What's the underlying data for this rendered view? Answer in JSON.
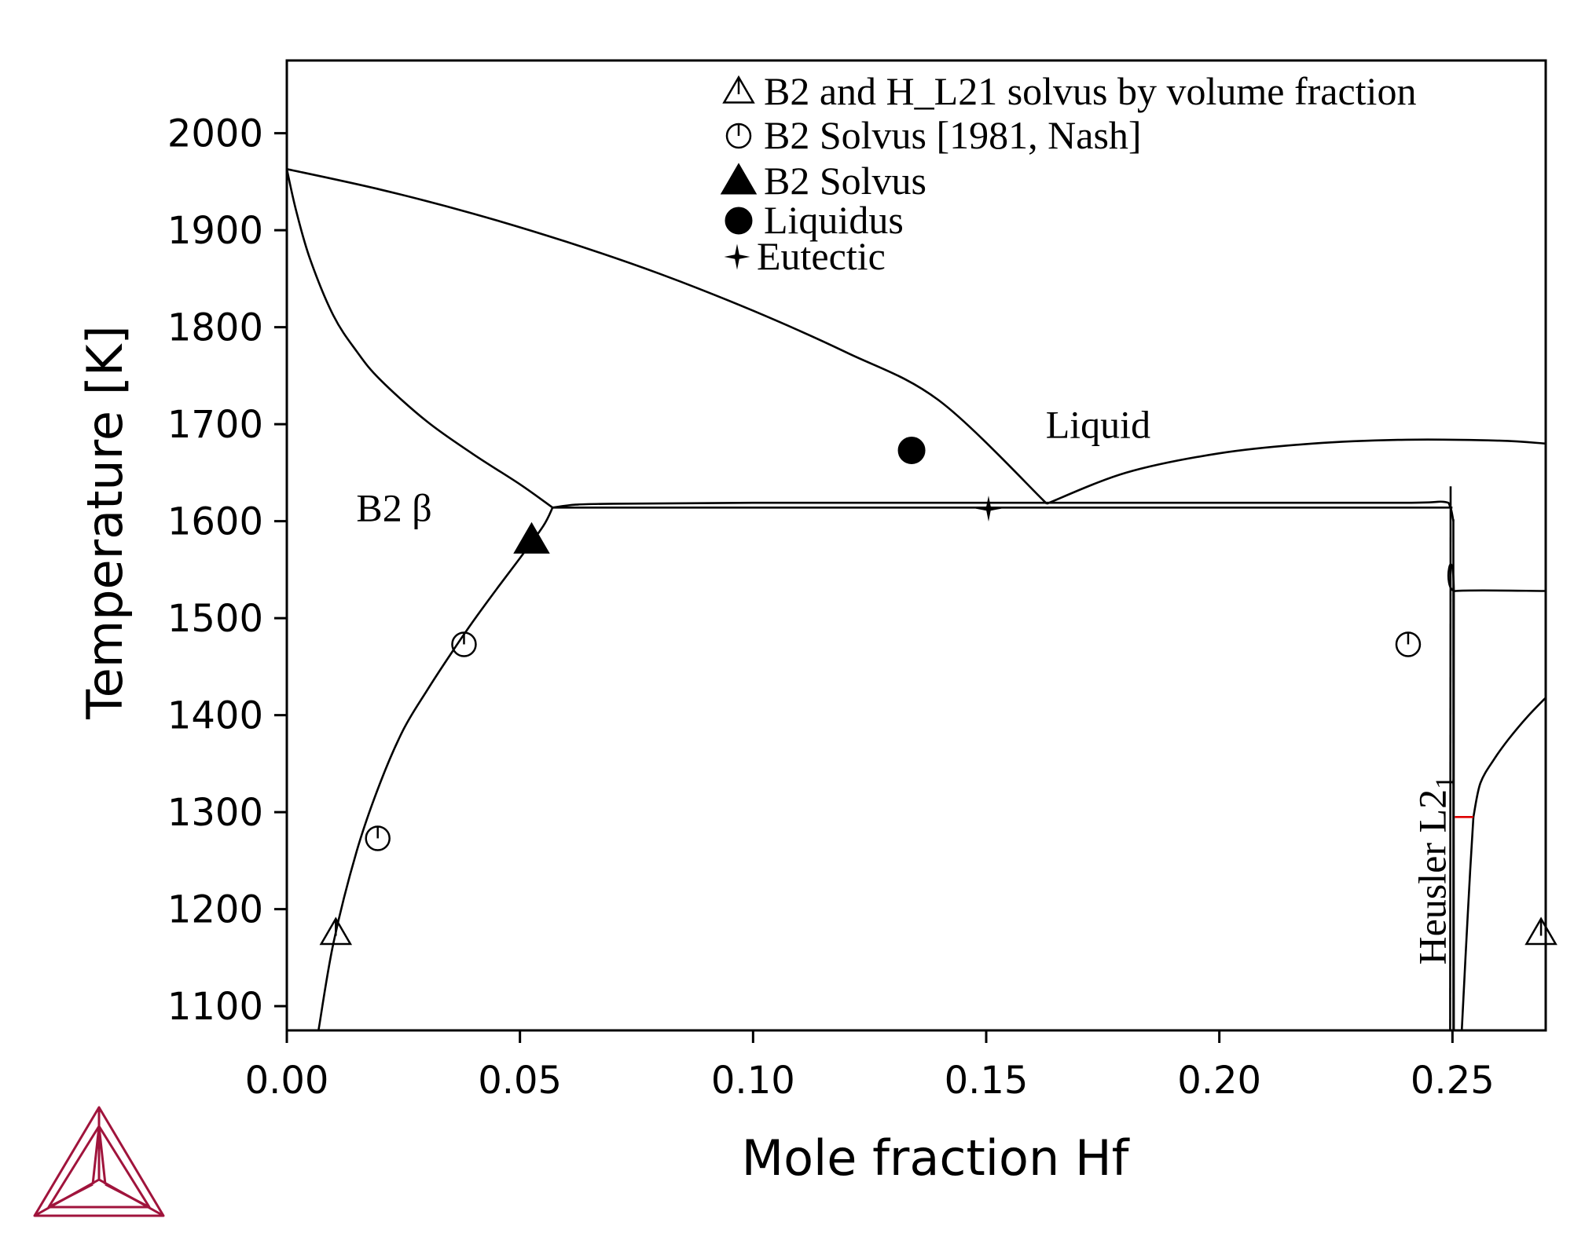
{
  "chart_data": {
    "type": "line",
    "xlabel": "Mole fraction Hf",
    "ylabel": "Temperature [K]",
    "xlim": [
      0,
      0.27
    ],
    "ylim": [
      1075,
      2075
    ],
    "x_ticks": [
      "0.00",
      "0.05",
      "0.10",
      "0.15",
      "0.20",
      "0.25"
    ],
    "x_tick_values": [
      0,
      0.05,
      0.1,
      0.15,
      0.2,
      0.25
    ],
    "y_ticks": [
      "1100",
      "1200",
      "1300",
      "1400",
      "1500",
      "1600",
      "1700",
      "1800",
      "1900",
      "2000"
    ],
    "y_tick_values": [
      1100,
      1200,
      1300,
      1400,
      1500,
      1600,
      1700,
      1800,
      1900,
      2000
    ],
    "grid": false,
    "legend_position": "top-right",
    "legend": [
      {
        "marker": "open-triangle",
        "label": "B2 and H_L21 solvus by volume fraction"
      },
      {
        "marker": "open-circle",
        "label": "B2 Solvus [1981, Nash]"
      },
      {
        "marker": "filled-triangle",
        "label": "B2 Solvus"
      },
      {
        "marker": "filled-circle",
        "label": "Liquidus"
      },
      {
        "marker": "star",
        "label": "Eutectic"
      }
    ],
    "region_labels": [
      {
        "text": "Liquid",
        "x": 0.174,
        "y": 1686
      },
      {
        "text": "B2 β",
        "x": 0.023,
        "y": 1600
      },
      {
        "text": "Heusler L2",
        "subscript": "1",
        "x": 0.2485,
        "y": 1240,
        "rotate": -90
      }
    ],
    "phase_boundaries": [
      {
        "name": "liquidus-left",
        "points": [
          [
            0,
            1963
          ],
          [
            0.02,
            1942
          ],
          [
            0.04,
            1917
          ],
          [
            0.06,
            1888
          ],
          [
            0.08,
            1855
          ],
          [
            0.1,
            1817
          ],
          [
            0.12,
            1774
          ],
          [
            0.14,
            1724
          ],
          [
            0.163,
            1618
          ]
        ]
      },
      {
        "name": "liquidus-right",
        "points": [
          [
            0.163,
            1618
          ],
          [
            0.18,
            1650
          ],
          [
            0.2,
            1670
          ],
          [
            0.22,
            1680
          ],
          [
            0.24,
            1684
          ],
          [
            0.26,
            1683
          ],
          [
            0.27,
            1680
          ]
        ]
      },
      {
        "name": "solidus-b2",
        "points": [
          [
            0,
            1963
          ],
          [
            0.002,
            1920
          ],
          [
            0.005,
            1870
          ],
          [
            0.01,
            1812
          ],
          [
            0.015,
            1775
          ],
          [
            0.02,
            1746
          ],
          [
            0.03,
            1703
          ],
          [
            0.04,
            1669
          ],
          [
            0.05,
            1638
          ],
          [
            0.057,
            1614
          ]
        ]
      },
      {
        "name": "eutectic-upper",
        "points": [
          [
            0.057,
            1614
          ],
          [
            0.062,
            1617
          ],
          [
            0.07,
            1618
          ],
          [
            0.1,
            1619
          ],
          [
            0.15,
            1619
          ],
          [
            0.2,
            1619
          ],
          [
            0.24,
            1619
          ],
          [
            0.248,
            1620
          ],
          [
            0.2495,
            1615
          ],
          [
            0.2502,
            1600
          ]
        ]
      },
      {
        "name": "eutectic-lower",
        "points": [
          [
            0.057,
            1614
          ],
          [
            0.25,
            1614
          ]
        ]
      },
      {
        "name": "b2-solvus",
        "points": [
          [
            0.0068,
            1075
          ],
          [
            0.01,
            1165
          ],
          [
            0.015,
            1260
          ],
          [
            0.02,
            1330
          ],
          [
            0.025,
            1385
          ],
          [
            0.03,
            1425
          ],
          [
            0.035,
            1462
          ],
          [
            0.04,
            1497
          ],
          [
            0.045,
            1530
          ],
          [
            0.05,
            1562
          ],
          [
            0.055,
            1595
          ],
          [
            0.057,
            1614
          ]
        ]
      },
      {
        "name": "heusler-left",
        "points": [
          [
            0.2495,
            1075
          ],
          [
            0.2496,
            1636
          ]
        ]
      },
      {
        "name": "heusler-right",
        "points": [
          [
            0.2502,
            1075
          ],
          [
            0.2502,
            1602
          ]
        ]
      },
      {
        "name": "heusler-1530",
        "points": [
          [
            0.2503,
            1075
          ],
          [
            0.2503,
            1520
          ],
          [
            0.2507,
            1528
          ],
          [
            0.27,
            1528
          ]
        ]
      },
      {
        "name": "second-solvus-lower",
        "points": [
          [
            0.252,
            1075
          ],
          [
            0.2528,
            1150
          ],
          [
            0.2538,
            1240
          ],
          [
            0.2545,
            1295
          ]
        ]
      },
      {
        "name": "second-solvus-upper",
        "points": [
          [
            0.2545,
            1295
          ],
          [
            0.256,
            1330
          ],
          [
            0.259,
            1355
          ],
          [
            0.262,
            1375
          ],
          [
            0.266,
            1398
          ],
          [
            0.27,
            1418
          ]
        ]
      },
      {
        "name": "red-tie-line",
        "color": "#dd0000",
        "points": [
          [
            0.2505,
            1295
          ],
          [
            0.2545,
            1295
          ]
        ]
      }
    ],
    "series": [
      {
        "name": "B2 and H_L21 solvus by volume fraction",
        "marker": "open-triangle",
        "points": [
          [
            0.0105,
            1175
          ],
          [
            0.269,
            1175
          ]
        ]
      },
      {
        "name": "B2 Solvus [1981, Nash]",
        "marker": "open-circle",
        "points": [
          [
            0.0195,
            1273
          ],
          [
            0.038,
            1473
          ],
          [
            0.2405,
            1473
          ]
        ]
      },
      {
        "name": "B2 Solvus",
        "marker": "filled-triangle",
        "points": [
          [
            0.0525,
            1580
          ]
        ]
      },
      {
        "name": "Liquidus",
        "marker": "filled-circle",
        "points": [
          [
            0.134,
            1673
          ]
        ]
      },
      {
        "name": "Eutectic",
        "marker": "star",
        "points": [
          [
            0.1505,
            1613
          ]
        ]
      }
    ]
  },
  "logo": {
    "color": "#a0143c",
    "name": "triangle-logo-icon"
  }
}
